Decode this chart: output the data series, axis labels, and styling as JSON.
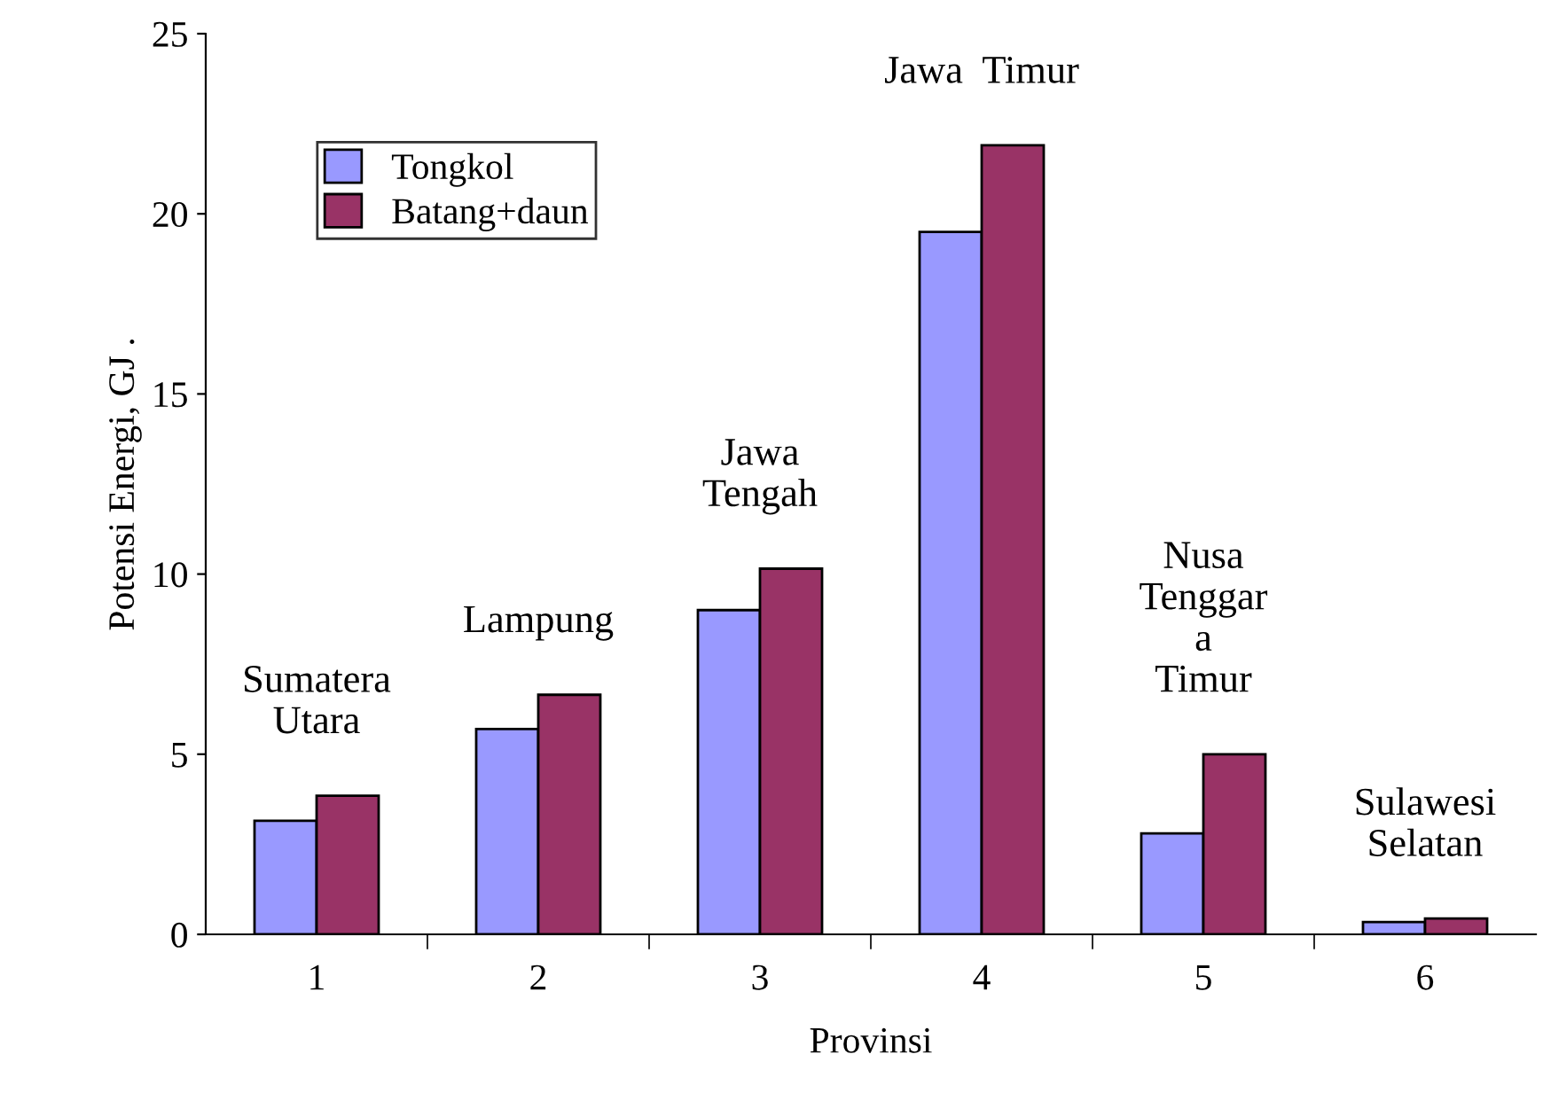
{
  "chart_data": {
    "type": "bar",
    "xlabel": "Provinsi",
    "ylabel": "Potensi Energi, GJ .",
    "categories": [
      "1",
      "2",
      "3",
      "4",
      "5",
      "6"
    ],
    "series": [
      {
        "name": "Tongkol",
        "color": "#9999ff",
        "values": [
          3.15,
          5.7,
          9.0,
          19.5,
          2.8,
          0.34
        ]
      },
      {
        "name": "Batang+daun",
        "color": "#993366",
        "values": [
          3.85,
          6.65,
          10.15,
          21.9,
          5.0,
          0.44
        ]
      }
    ],
    "ylim": [
      0,
      25
    ],
    "yticks": [
      0,
      5,
      10,
      15,
      20,
      25
    ],
    "grid": false,
    "legend": "top left",
    "annotations": [
      "Sumatera\nUtara",
      "Lampung",
      "Jawa\nTengah",
      "Jawa  Timur",
      "Nusa\nTenggar\na\nTimur",
      "Sulawesi\nSelatan"
    ]
  }
}
